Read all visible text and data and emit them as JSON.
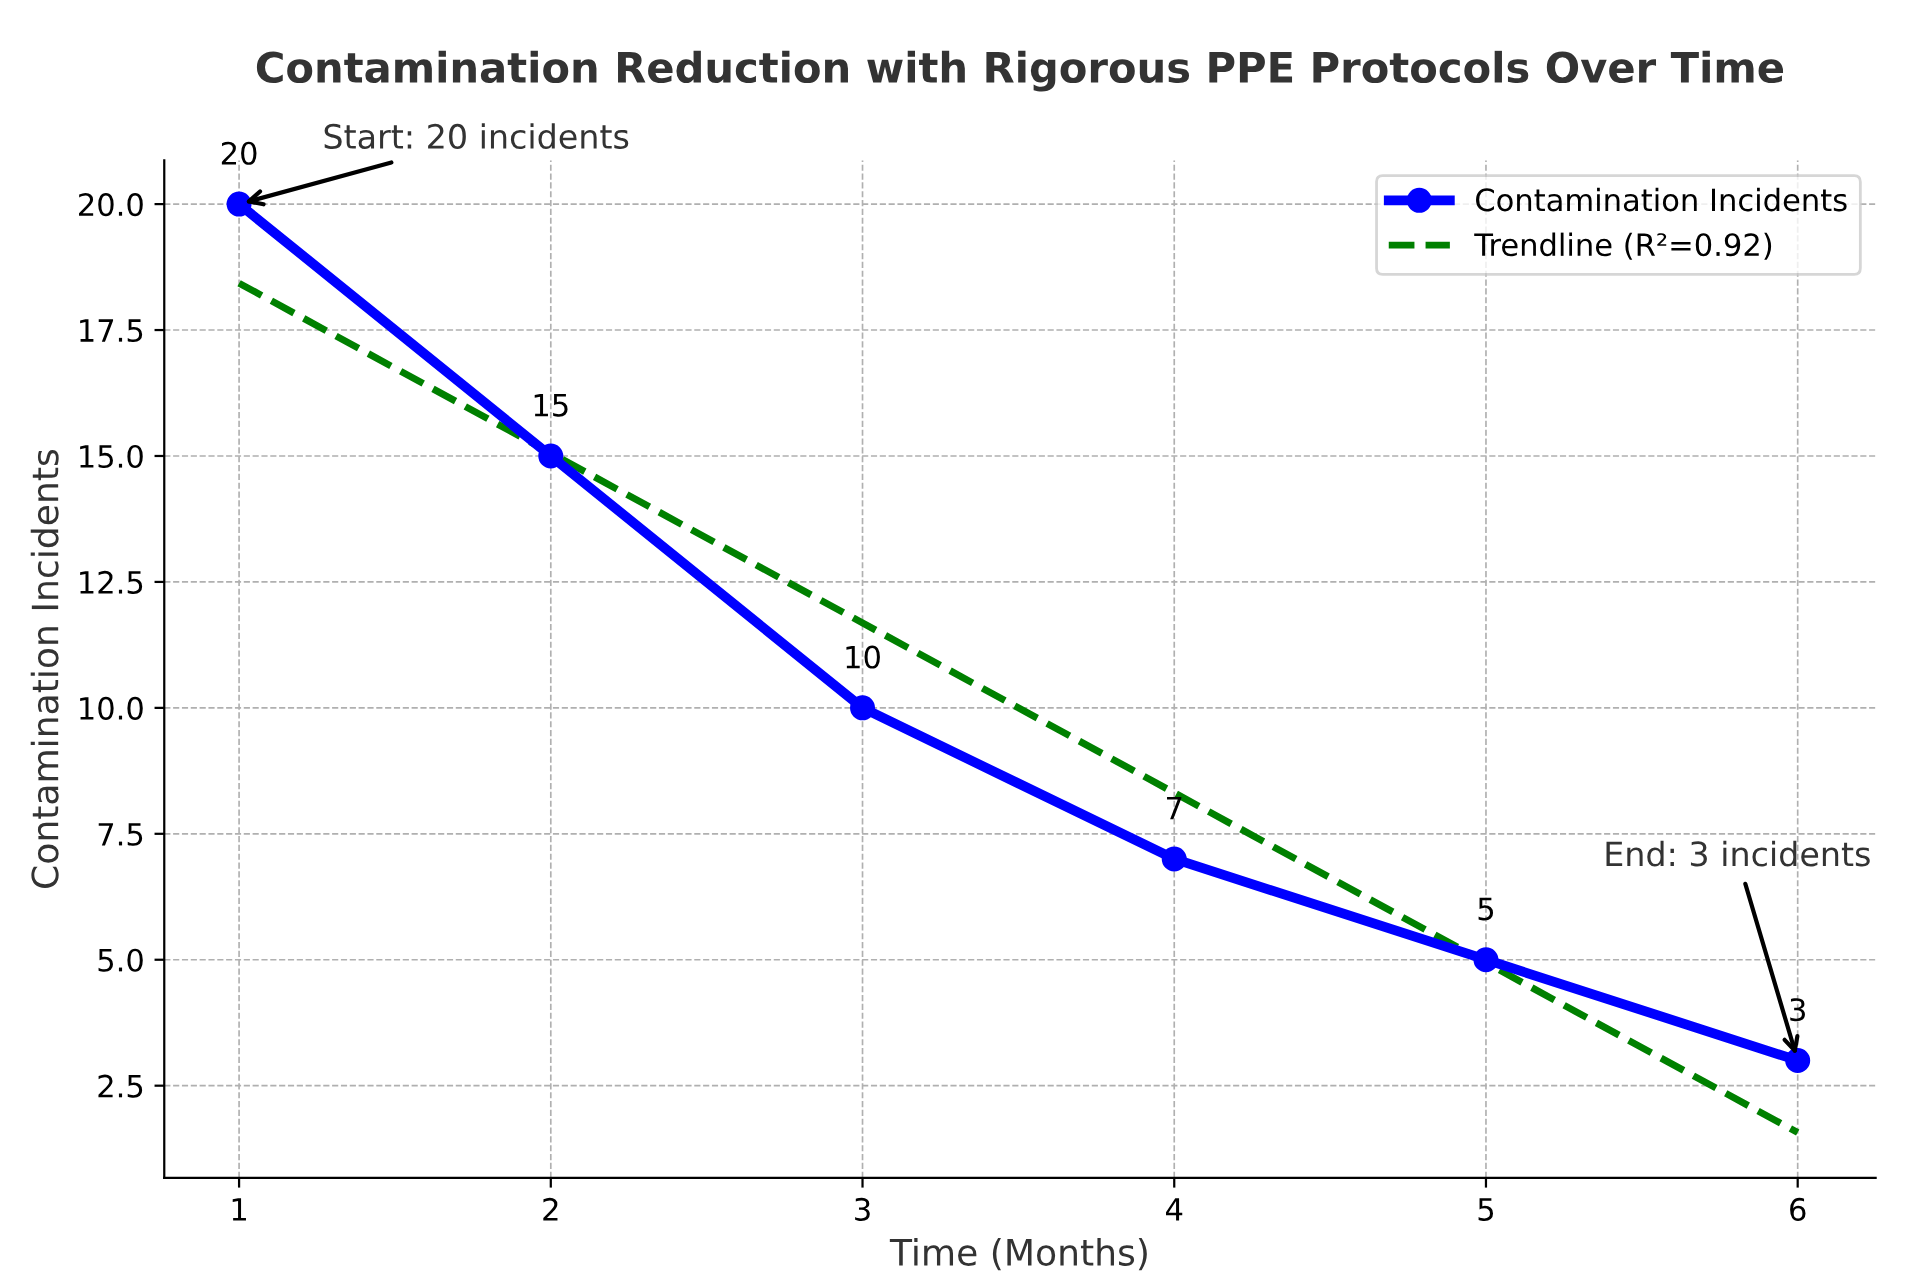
{
  "chart_data": {
    "type": "line",
    "title": "Contamination Reduction with Rigorous PPE Protocols Over Time",
    "xlabel": "Time (Months)",
    "ylabel": "Contamination Incidents",
    "x": [
      1,
      2,
      3,
      4,
      5,
      6
    ],
    "series": [
      {
        "name": "Contamination Incidents",
        "color": "#0000ff",
        "values": [
          20,
          15,
          10,
          7,
          5,
          3
        ],
        "marker": "circle",
        "line_style": "solid",
        "data_labels": true
      },
      {
        "name": "Trendline (R²=0.92)",
        "color": "#008000",
        "type": "line",
        "x": [
          1,
          6
        ],
        "values": [
          18.43,
          1.57
        ],
        "marker": "none",
        "line_style": "dashed"
      }
    ],
    "xlim": [
      0.76,
      6.25
    ],
    "ylim": [
      0.67,
      20.87
    ],
    "xticks": [
      1,
      2,
      3,
      4,
      5,
      6
    ],
    "yticks": [
      {
        "value": 2.5,
        "label": "2.5"
      },
      {
        "value": 5,
        "label": "5.0"
      },
      {
        "value": 7.5,
        "label": "7.5"
      },
      {
        "value": 10,
        "label": "10.0"
      },
      {
        "value": 12.5,
        "label": "12.5"
      },
      {
        "value": 15,
        "label": "15.0"
      },
      {
        "value": 17.5,
        "label": "17.5"
      },
      {
        "value": 20,
        "label": "20.0"
      }
    ],
    "grid": true,
    "legend": "top right",
    "annotations": [
      {
        "text": "Start: 20 incidents",
        "x": 1,
        "y": 20
      },
      {
        "text": "End: 3 incidents",
        "x": 6,
        "y": 3
      }
    ]
  }
}
